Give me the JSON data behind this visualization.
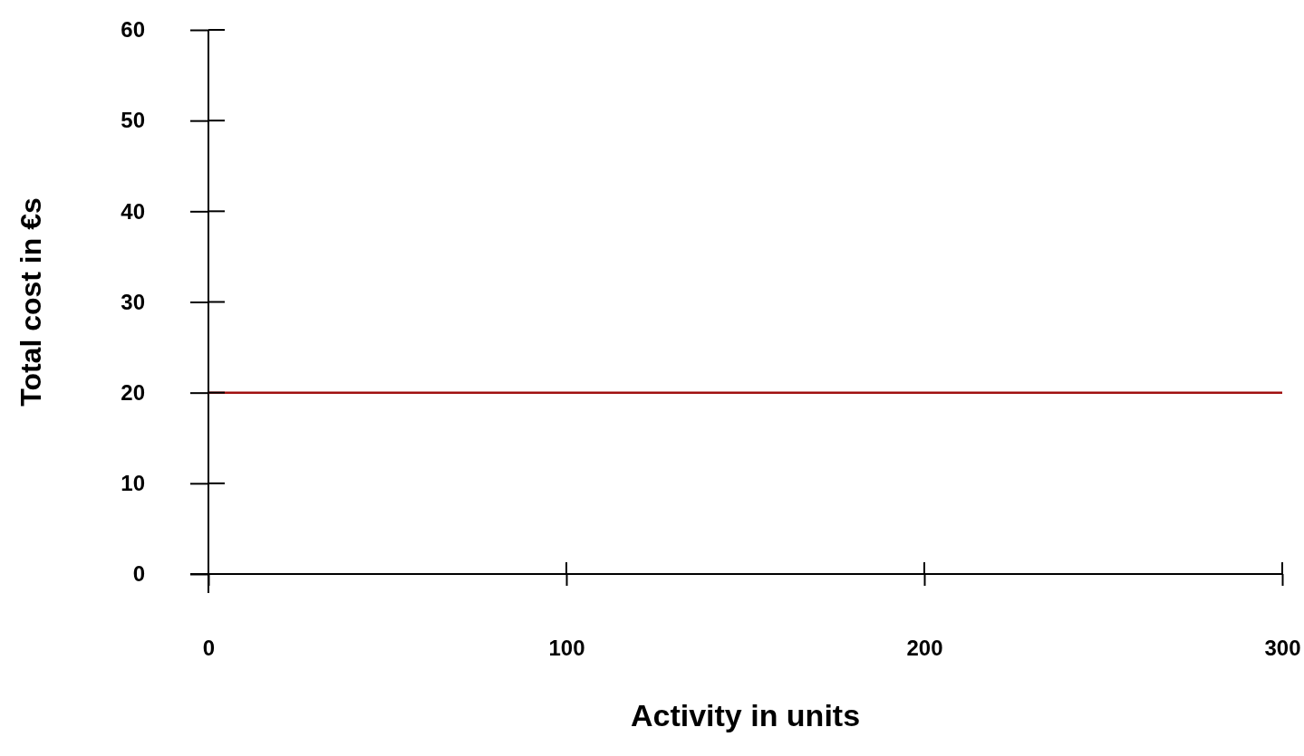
{
  "chart_data": {
    "type": "line",
    "xlabel": "Activity in units",
    "ylabel": "Total cost in €s",
    "x": [
      0,
      300
    ],
    "series": [
      {
        "color": "#a01010",
        "values": [
          20,
          20
        ]
      }
    ],
    "xlim": [
      0,
      300
    ],
    "xticks": [
      0,
      100,
      200,
      300
    ],
    "ylim": [
      0,
      60
    ],
    "yticks": [
      0,
      10,
      20,
      30,
      40,
      50,
      60
    ],
    "grid": false,
    "marker": "none",
    "line_style": "solid"
  }
}
